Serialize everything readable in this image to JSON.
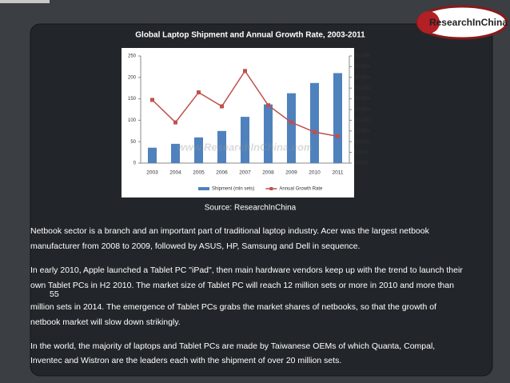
{
  "chart_data": {
    "type": "bar",
    "title": "Global Laptop Shipment and Annual Growth Rate, 2003-2011",
    "categories": [
      "2003",
      "2004",
      "2005",
      "2006",
      "2007",
      "2008",
      "2009",
      "2010",
      "2011"
    ],
    "series": [
      {
        "name": "Shipment (mln sets)",
        "type": "bar",
        "color": "#4f81bd",
        "values": [
          36,
          45,
          60,
          75,
          108,
          137,
          163,
          187,
          210
        ]
      },
      {
        "name": "Annual Growth Rate",
        "type": "line",
        "axis": "y2",
        "color": "#c0504d",
        "values": [
          29.5,
          19,
          33,
          26.5,
          43,
          27,
          19,
          14.5,
          12.5
        ]
      }
    ],
    "ylim": [
      0,
      250
    ],
    "yticks": [
      0,
      50,
      100,
      150,
      200,
      250
    ],
    "y2lim": [
      0,
      50
    ],
    "y2ticks": [
      {
        "value": 0,
        "label": "0.00%"
      },
      {
        "value": 5,
        "label": "5.00%"
      },
      {
        "value": 10,
        "label": "10.00%"
      },
      {
        "value": 15,
        "label": "15.00%"
      },
      {
        "value": 20,
        "label": "20.00%"
      },
      {
        "value": 25,
        "label": "25.00%"
      },
      {
        "value": 30,
        "label": "30.00%"
      },
      {
        "value": 35,
        "label": "35.00%"
      },
      {
        "value": 40,
        "label": "40.00%"
      },
      {
        "value": 45,
        "label": "45.00%"
      },
      {
        "value": 50,
        "label": "50.00%"
      }
    ],
    "watermark": "www.ResearchInChina.com",
    "legend": "bottom"
  },
  "source": "Source: ResearchInChina",
  "logo": "ResearchInChina",
  "paragraphs": [
    [
      "Netbook sector is a branch and an important part of traditional laptop industry. Acer was the largest netbook",
      "manufacturer from 2008 to 2009, followed by ASUS, HP, Samsung and Dell in sequence."
    ],
    [
      "In early 2010, Apple launched a Tablet PC \"iPad\", then main hardware vendors keep up with the trend to launch their",
      "own Tablet PCs in H2 2010. The market size of Tablet PC will reach 12 million sets or more in 2010 and more than",
      "55",
      "million sets in 2014. The emergence of Tablet PCs grabs the market shares of netbooks, so that the growth of",
      "netbook market will slow down strikingly."
    ],
    [
      "In the world, the majority of laptops and Tablet PCs are made by Taiwanese OEMs of which Quanta, Compal,",
      "Inventec and Wistron are the leaders each with the shipment of over 20 million sets."
    ]
  ]
}
